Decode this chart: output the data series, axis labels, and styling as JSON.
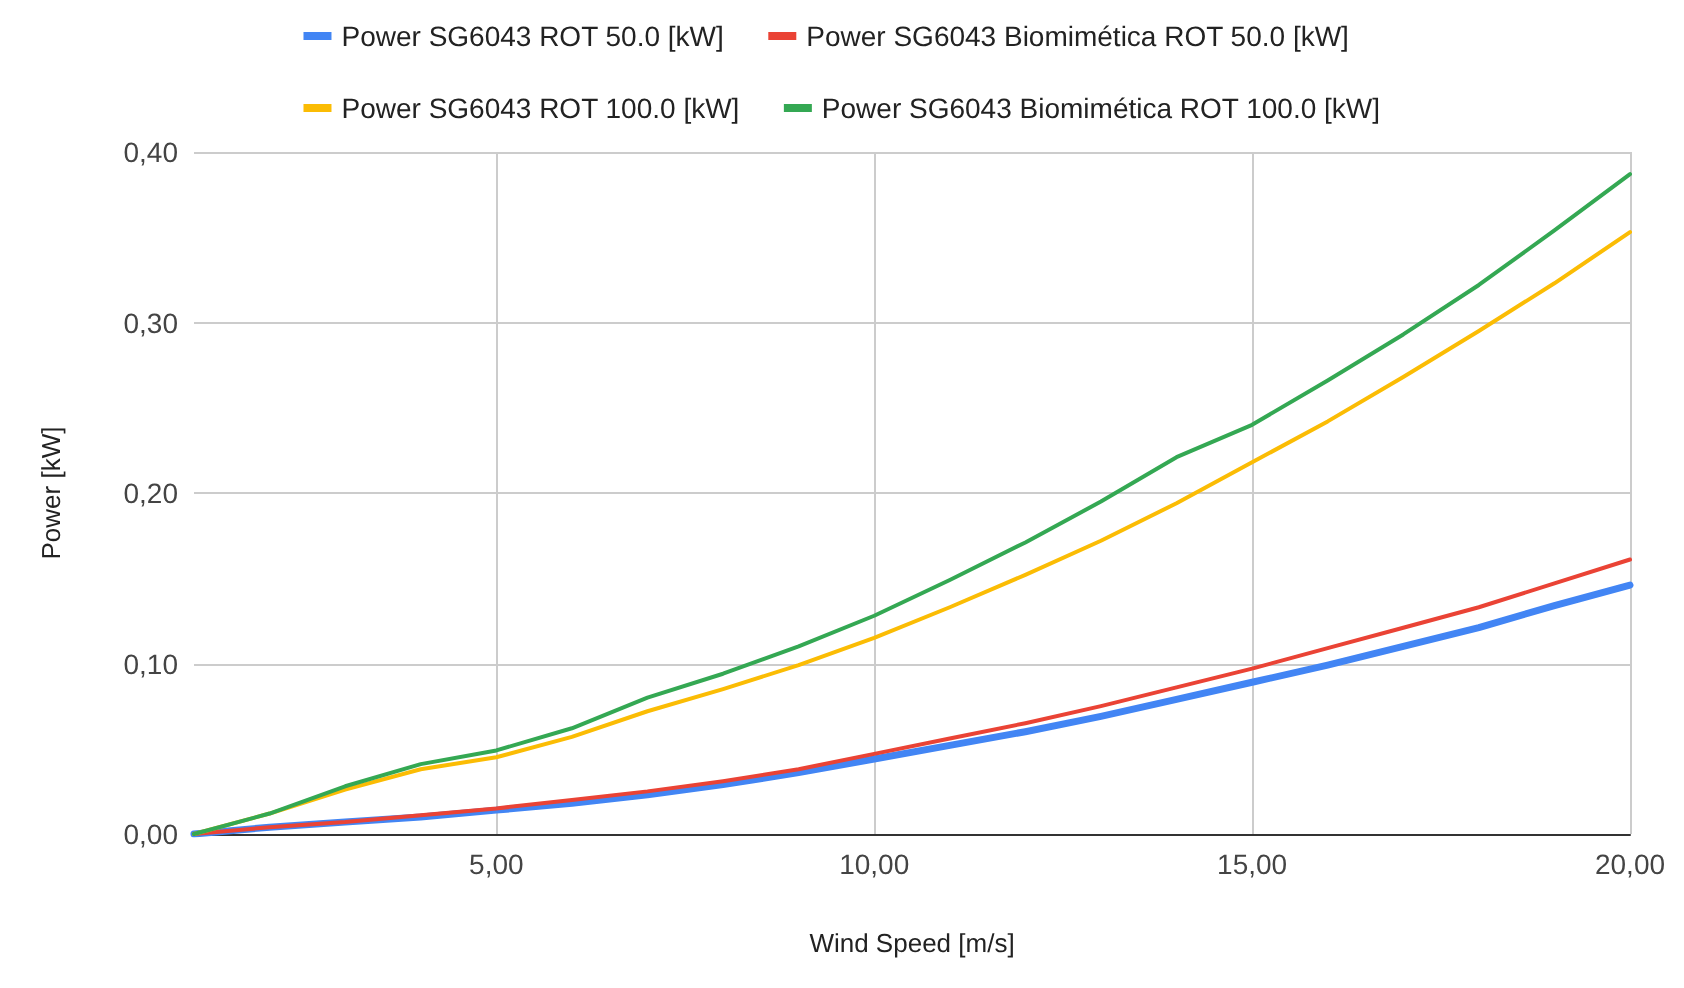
{
  "chart_data": {
    "type": "line",
    "xlabel": "Wind Speed [m/s]",
    "ylabel": "Power [kW]",
    "x": [
      1,
      2,
      3,
      4,
      5,
      6,
      7,
      8,
      9,
      10,
      11,
      12,
      13,
      14,
      15,
      16,
      17,
      18,
      19,
      20
    ],
    "series": [
      {
        "name": "Power SG6043 ROT 50.0 [kW]",
        "color": "#4285f4",
        "values": [
          0,
          0.004,
          0.007,
          0.01,
          0.014,
          0.018,
          0.023,
          0.029,
          0.036,
          0.044,
          0.052,
          0.06,
          0.069,
          0.079,
          0.089,
          0.099,
          0.11,
          0.121,
          0.134,
          0.146
        ]
      },
      {
        "name": "Power SG6043 Biomimética ROT 50.0 [kW]",
        "color": "#ea4335",
        "values": [
          0,
          0.004,
          0.007,
          0.011,
          0.015,
          0.02,
          0.025,
          0.031,
          0.038,
          0.047,
          0.056,
          0.065,
          0.075,
          0.086,
          0.097,
          0.109,
          0.121,
          0.133,
          0.147,
          0.161
        ]
      },
      {
        "name": "Power SG6043 ROT 100.0 [kW]",
        "color": "#fbbc04",
        "values": [
          0,
          0.012,
          0.026,
          0.038,
          0.045,
          0.057,
          0.072,
          0.085,
          0.099,
          0.115,
          0.133,
          0.152,
          0.172,
          0.194,
          0.218,
          0.242,
          0.268,
          0.295,
          0.323,
          0.353
        ]
      },
      {
        "name": "Power SG6043 Biomimética ROT 100.0 [kW]",
        "color": "#34a853",
        "values": [
          0,
          0.012,
          0.028,
          0.041,
          0.049,
          0.062,
          0.08,
          0.094,
          0.11,
          0.128,
          0.149,
          0.171,
          0.195,
          0.221,
          0.24,
          0.266,
          0.293,
          0.322,
          0.354,
          0.387
        ]
      }
    ],
    "xlim": [
      1,
      20
    ],
    "xticks": [
      {
        "value": 5,
        "label": "5,00"
      },
      {
        "value": 10,
        "label": "10,00"
      },
      {
        "value": 15,
        "label": "15,00"
      },
      {
        "value": 20,
        "label": "20,00"
      }
    ],
    "ylim": [
      0,
      0.4
    ],
    "yticks": [
      {
        "value": 0,
        "label": "0,00"
      },
      {
        "value": 0.1,
        "label": "0,10"
      },
      {
        "value": 0.2,
        "label": "0,20"
      },
      {
        "value": 0.3,
        "label": "0,30"
      },
      {
        "value": 0.4,
        "label": "0,40"
      }
    ],
    "grid": true,
    "legend": "top",
    "marker": "none",
    "line_style": "solid"
  }
}
